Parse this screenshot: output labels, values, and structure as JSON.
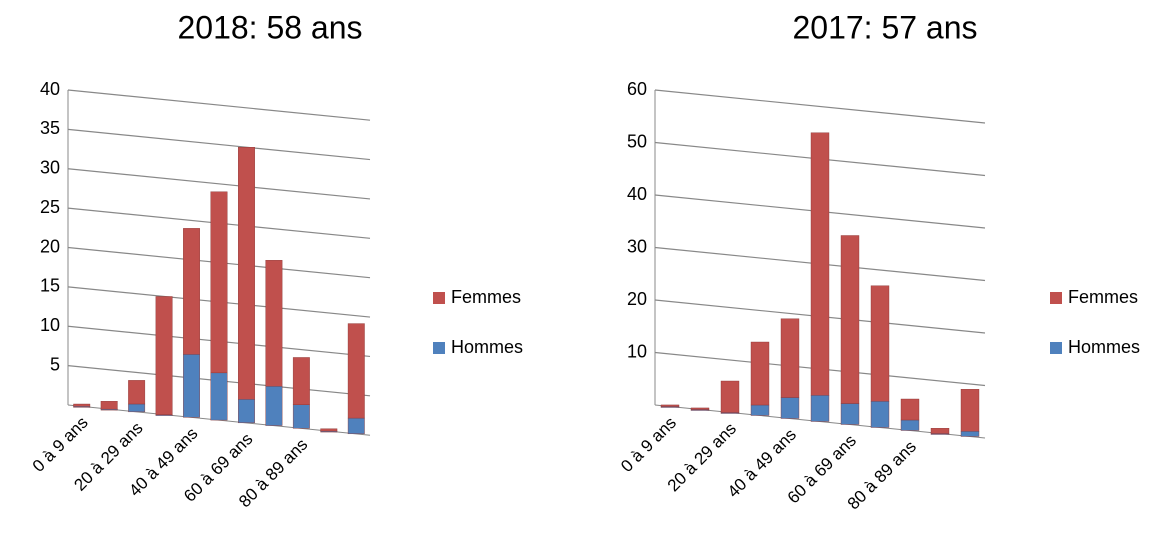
{
  "chart_data": [
    {
      "type": "bar",
      "stacked": true,
      "title": "2018: 58 ans",
      "categories": [
        "0 à 9 ans",
        null,
        "20 à 29 ans",
        null,
        "40 à 49 ans",
        null,
        "60 à 69 ans",
        null,
        "80 à 89 ans",
        null,
        null
      ],
      "series": [
        {
          "name": "Hommes",
          "color": "#4f81bd",
          "values": [
            0,
            0,
            1,
            0,
            8,
            6,
            3,
            5,
            3,
            0,
            2
          ]
        },
        {
          "name": "Femmes",
          "color": "#c0504d",
          "values": [
            0.3,
            1,
            3,
            15,
            16,
            23,
            32,
            16,
            6,
            0.3,
            12
          ]
        }
      ],
      "ylim": [
        0,
        40
      ],
      "yticks": [
        5,
        10,
        15,
        20,
        25,
        30,
        35,
        40
      ],
      "grid": true,
      "legend": "right"
    },
    {
      "type": "bar",
      "stacked": true,
      "title": "2017: 57 ans",
      "categories": [
        "0 à 9 ans",
        null,
        "20 à 29 ans",
        null,
        "40 à 49 ans",
        null,
        "60 à 69 ans",
        null,
        "80 à 89 ans",
        null,
        null
      ],
      "series": [
        {
          "name": "Hommes",
          "color": "#4f81bd",
          "values": [
            0,
            0,
            0,
            2,
            4,
            5,
            4,
            5,
            2,
            0,
            1
          ]
        },
        {
          "name": "Femmes",
          "color": "#c0504d",
          "values": [
            0.3,
            0.3,
            6,
            12,
            15,
            50,
            32,
            22,
            4,
            1,
            8
          ]
        }
      ],
      "ylim": [
        0,
        60
      ],
      "yticks": [
        10,
        20,
        30,
        40,
        50,
        60
      ],
      "grid": true,
      "legend": "right"
    }
  ]
}
